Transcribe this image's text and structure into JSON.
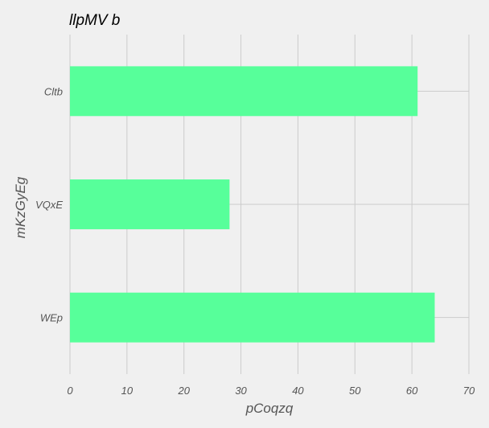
{
  "chart_data": {
    "type": "bar",
    "orientation": "horizontal",
    "title": "llpMV b",
    "xlabel": "pCoqzq",
    "ylabel": "mKzGyEg",
    "categories": [
      "Cltb",
      "VQxE",
      "WEp"
    ],
    "values": [
      61,
      28,
      64
    ],
    "xlim": [
      0,
      70
    ],
    "xticks": [
      0,
      10,
      20,
      30,
      40,
      50,
      60,
      70
    ],
    "grid": true,
    "bar_color": "#57ff9a",
    "background": "#f0f0f0",
    "grid_color": "#cbcbcb"
  }
}
